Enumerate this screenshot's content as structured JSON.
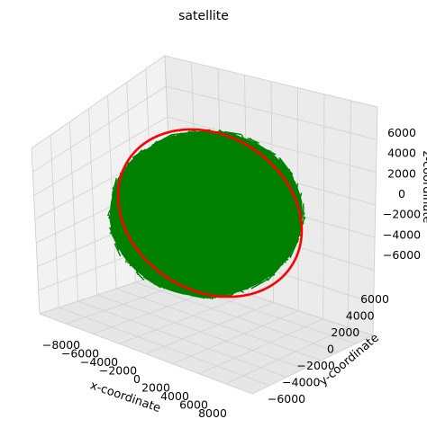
{
  "chart_data": {
    "type": "line",
    "projection": "3d",
    "title": "satellite",
    "xlabel": "x-coordinate",
    "ylabel": "y-coordinate",
    "zlabel": "z-coordinate",
    "xlim": [
      -8000,
      8000
    ],
    "ylim": [
      -7000,
      7000
    ],
    "zlim": [
      -7500,
      7500
    ],
    "x_ticks": [
      "−8000",
      "−6000",
      "−4000",
      "−2000",
      "0",
      "2000",
      "4000",
      "6000",
      "8000"
    ],
    "y_ticks": [
      "−6000",
      "−4000",
      "−2000",
      "0",
      "2000",
      "4000",
      "6000"
    ],
    "z_ticks": [
      "−6000",
      "−4000",
      "−2000",
      "0",
      "2000",
      "4000",
      "6000"
    ],
    "x_tick_values": [
      -8000,
      -6000,
      -4000,
      -2000,
      0,
      2000,
      4000,
      6000,
      8000
    ],
    "y_tick_values": [
      -6000,
      -4000,
      -2000,
      0,
      2000,
      4000,
      6000
    ],
    "z_tick_values": [
      -6000,
      -4000,
      -2000,
      0,
      2000,
      4000,
      6000
    ],
    "grid": true,
    "series": [
      {
        "kind": "sphere-surface",
        "color": "#008000",
        "radius": 6400
      },
      {
        "kind": "orbit",
        "color": "#ff0000",
        "radius": 7000,
        "inclination_deg": 55
      }
    ]
  }
}
